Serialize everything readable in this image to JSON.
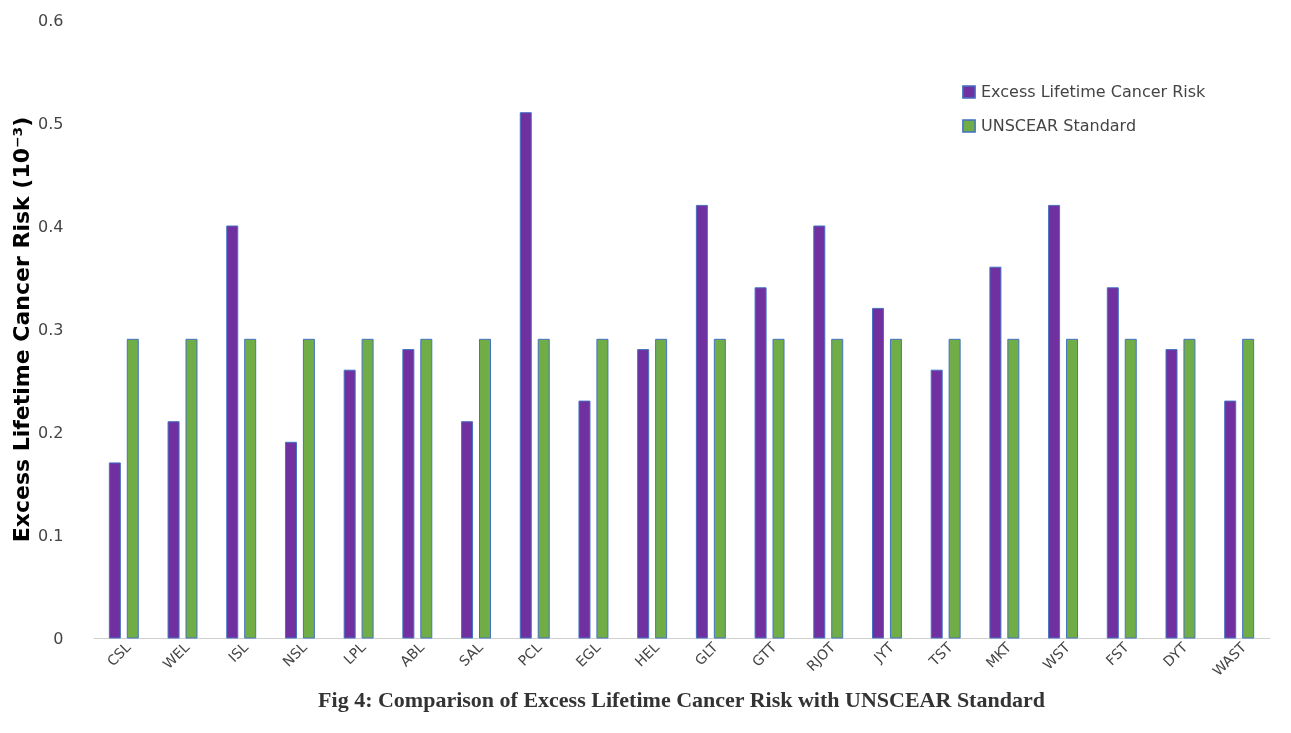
{
  "chart_data": {
    "type": "bar",
    "title": "Fig 4: Comparison of Excess Lifetime Cancer Risk with UNSCEAR Standard",
    "ylabel": "Excess Lifetime Cancer Risk (10⁻³)",
    "categories": [
      "CSL",
      "WEL",
      "ISL",
      "NSL",
      "LPL",
      "ABL",
      "SAL",
      "PCL",
      "EGL",
      "HEL",
      "GLT",
      "GTT",
      "RJOT",
      "JYT",
      "TST",
      "MKT",
      "WST",
      "FST",
      "DYT",
      "WAST"
    ],
    "series": [
      {
        "name": "Excess Lifetime Cancer Risk",
        "color": "#7030a0",
        "values": [
          0.17,
          0.21,
          0.4,
          0.19,
          0.26,
          0.28,
          0.21,
          0.51,
          0.23,
          0.28,
          0.42,
          0.34,
          0.4,
          0.32,
          0.26,
          0.36,
          0.42,
          0.34,
          0.28,
          0.23
        ]
      },
      {
        "name": "UNSCEAR Standard",
        "color": "#70ad47",
        "values": [
          0.29,
          0.29,
          0.29,
          0.29,
          0.29,
          0.29,
          0.29,
          0.29,
          0.29,
          0.29,
          0.29,
          0.29,
          0.29,
          0.29,
          0.29,
          0.29,
          0.29,
          0.29,
          0.29,
          0.29
        ]
      }
    ],
    "ylim": [
      0,
      0.6
    ],
    "yticks": [
      0,
      0.1,
      0.2,
      0.3,
      0.4,
      0.5,
      0.6
    ],
    "grid": false,
    "legend": "top right"
  }
}
